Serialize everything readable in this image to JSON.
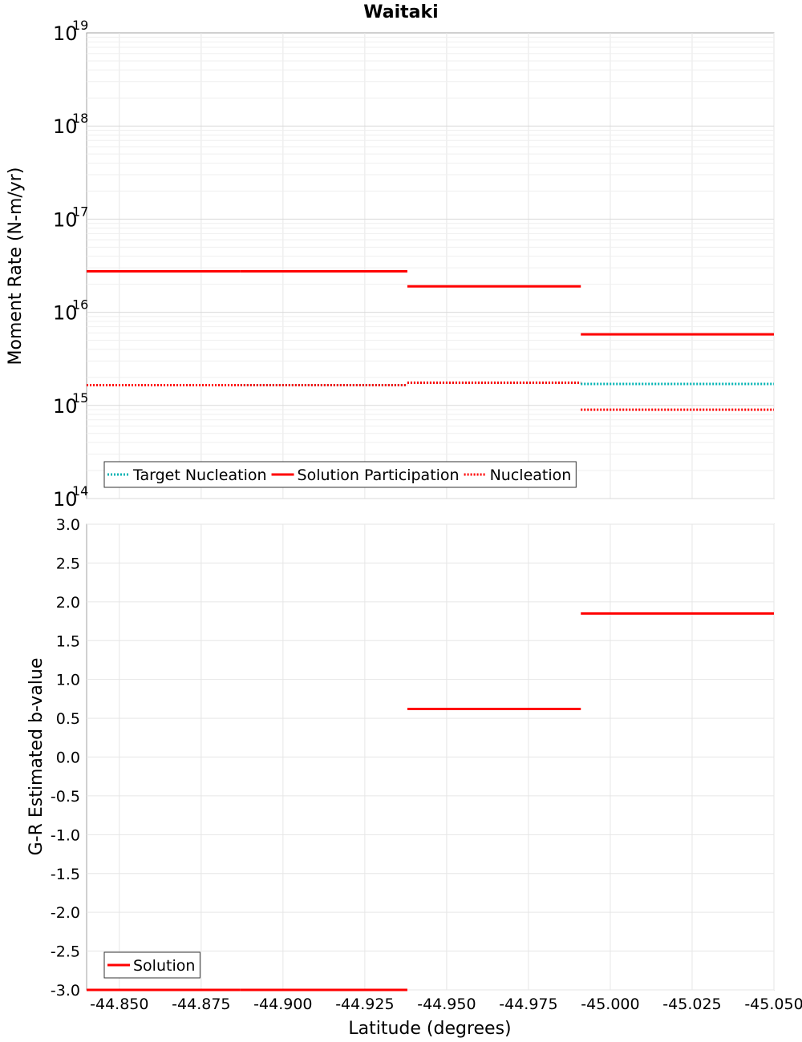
{
  "chart_data": {
    "title": "Waitaki",
    "xlabel": "Latitude (degrees)",
    "xlim": [
      -44.84,
      -45.05
    ],
    "x_ticks": [
      "-44.850",
      "-44.875",
      "-44.900",
      "-44.925",
      "-44.950",
      "-44.975",
      "-45.000",
      "-45.025",
      "-45.050"
    ],
    "x_tick_values": [
      -44.85,
      -44.875,
      -44.9,
      -44.925,
      -44.95,
      -44.975,
      -45.0,
      -45.025,
      -45.05
    ],
    "grid": true,
    "colors": {
      "target": "#00b3b3",
      "solution": "#ff0000",
      "nucleation": "#ff0000"
    },
    "panels": [
      {
        "type": "line",
        "ylabel": "Moment Rate (N-m/yr)",
        "yscale": "log",
        "ylim": [
          100000000000000.0,
          1e+19
        ],
        "y_tick_exponents": [
          "14",
          "15",
          "16",
          "17",
          "18",
          "19"
        ],
        "legend": {
          "position": "bottom-left",
          "entries": [
            "Target Nucleation",
            "Solution Participation",
            "Nucleation"
          ]
        },
        "series": [
          {
            "name": "Target Nucleation",
            "style": "dotted",
            "color": "#00b3b3",
            "segments": [
              {
                "x": [
                  -44.84,
                  -44.887
                ],
                "y": 1650000000000000.0
              },
              {
                "x": [
                  -44.887,
                  -44.938
                ],
                "y": 1650000000000000.0
              },
              {
                "x": [
                  -44.938,
                  -44.991
                ],
                "y": 1750000000000000.0
              },
              {
                "x": [
                  -44.991,
                  -45.05
                ],
                "y": 1700000000000000.0
              }
            ]
          },
          {
            "name": "Solution Participation",
            "style": "solid",
            "color": "#ff0000",
            "segments": [
              {
                "x": [
                  -44.84,
                  -44.887
                ],
                "y": 2.75e+16
              },
              {
                "x": [
                  -44.887,
                  -44.938
                ],
                "y": 2.75e+16
              },
              {
                "x": [
                  -44.938,
                  -44.991
                ],
                "y": 1.9e+16
              },
              {
                "x": [
                  -44.991,
                  -45.05
                ],
                "y": 5800000000000000.0
              }
            ]
          },
          {
            "name": "Nucleation",
            "style": "dotted",
            "color": "#ff0000",
            "segments": [
              {
                "x": [
                  -44.84,
                  -44.887
                ],
                "y": 1650000000000000.0
              },
              {
                "x": [
                  -44.887,
                  -44.938
                ],
                "y": 1650000000000000.0
              },
              {
                "x": [
                  -44.938,
                  -44.991
                ],
                "y": 1750000000000000.0
              },
              {
                "x": [
                  -44.991,
                  -45.05
                ],
                "y": 900000000000000.0
              }
            ]
          }
        ]
      },
      {
        "type": "line",
        "ylabel": "G-R Estimated b-value",
        "yscale": "linear",
        "ylim": [
          -3.0,
          3.0
        ],
        "y_ticks": [
          "-3.0",
          "-2.5",
          "-2.0",
          "-1.5",
          "-1.0",
          "-0.5",
          "0.0",
          "0.5",
          "1.0",
          "1.5",
          "2.0",
          "2.5",
          "3.0"
        ],
        "y_tick_values": [
          -3.0,
          -2.5,
          -2.0,
          -1.5,
          -1.0,
          -0.5,
          0.0,
          0.5,
          1.0,
          1.5,
          2.0,
          2.5,
          3.0
        ],
        "legend": {
          "position": "bottom-left",
          "entries": [
            "Solution"
          ]
        },
        "series": [
          {
            "name": "Solution",
            "style": "solid",
            "color": "#ff0000",
            "segments": [
              {
                "x": [
                  -44.84,
                  -44.887
                ],
                "y": -3.0
              },
              {
                "x": [
                  -44.887,
                  -44.938
                ],
                "y": -3.0
              },
              {
                "x": [
                  -44.938,
                  -44.991
                ],
                "y": 0.62
              },
              {
                "x": [
                  -44.991,
                  -45.05
                ],
                "y": 1.85
              }
            ]
          }
        ]
      }
    ]
  }
}
